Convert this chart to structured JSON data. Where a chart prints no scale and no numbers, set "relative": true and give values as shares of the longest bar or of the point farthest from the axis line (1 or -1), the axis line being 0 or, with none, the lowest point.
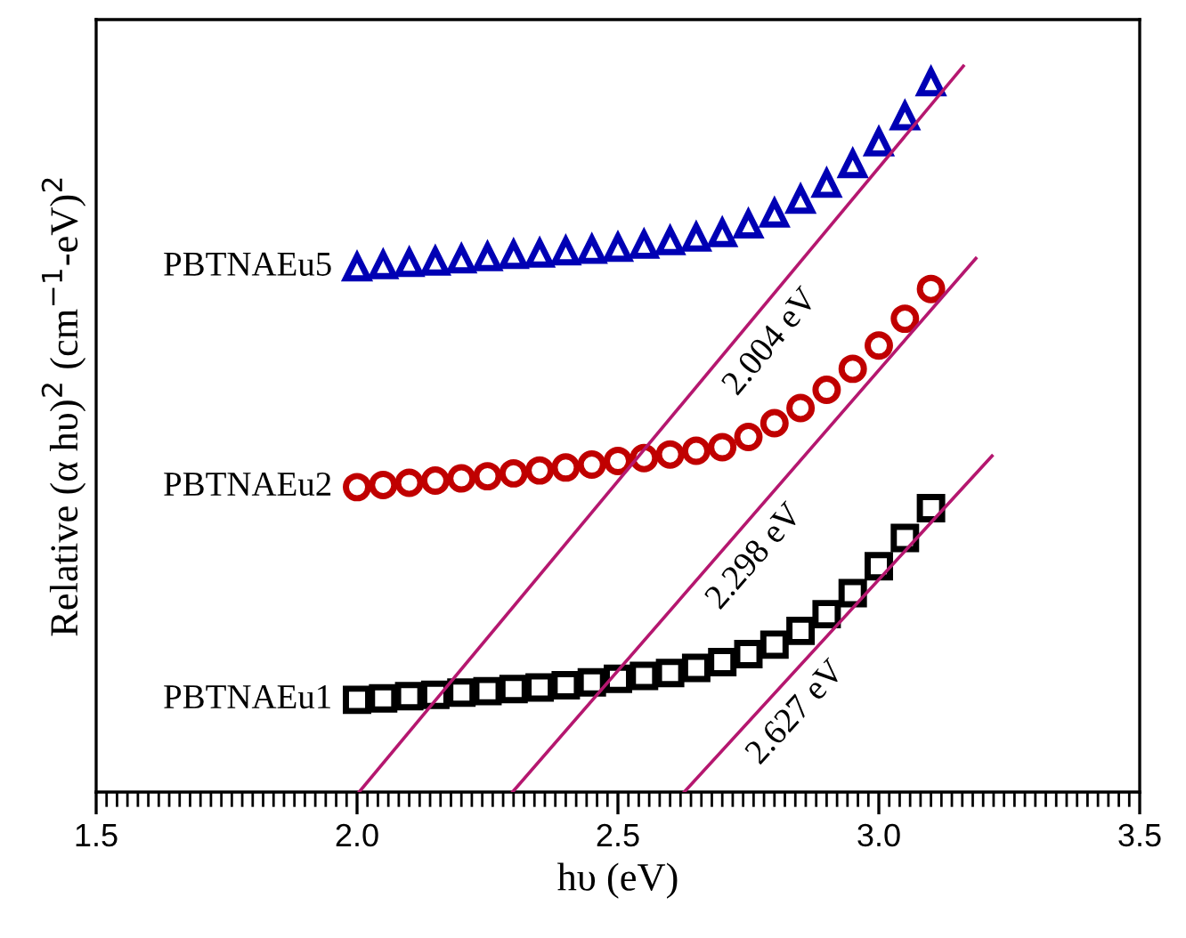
{
  "chart_data": {
    "type": "scatter",
    "relative": true,
    "xlabel": "hυ (eV)",
    "ylabel": "Relative (α hυ)$^{2}$ (cm$^{−1}$-eV)$^{2}$",
    "xlim": [
      1.5,
      3.5
    ],
    "xticks": [
      {
        "value": 1.5,
        "label": "1.5"
      },
      {
        "value": 2.0,
        "label": "2.0"
      },
      {
        "value": 2.5,
        "label": "2.5"
      },
      {
        "value": 3.0,
        "label": "3.0"
      },
      {
        "value": 3.5,
        "label": "3.5"
      }
    ],
    "grid": false,
    "series": [
      {
        "name": "PBTNAEu1",
        "color": "#000000",
        "marker": "square",
        "x": [
          2.0,
          2.05,
          2.1,
          2.15,
          2.2,
          2.25,
          2.3,
          2.35,
          2.4,
          2.45,
          2.5,
          2.55,
          2.6,
          2.65,
          2.7,
          2.75,
          2.8,
          2.85,
          2.9,
          2.95,
          3.0,
          3.05,
          3.1
        ],
        "values": [
          0.127,
          0.129,
          0.132,
          0.134,
          0.137,
          0.139,
          0.142,
          0.144,
          0.147,
          0.151,
          0.156,
          0.16,
          0.164,
          0.171,
          0.179,
          0.19,
          0.203,
          0.222,
          0.245,
          0.274,
          0.311,
          0.35,
          0.391
        ]
      },
      {
        "name": "PBTNAEu2",
        "color": "#c00000",
        "marker": "circle",
        "x": [
          2.0,
          2.05,
          2.1,
          2.15,
          2.2,
          2.25,
          2.3,
          2.35,
          2.4,
          2.45,
          2.5,
          2.55,
          2.6,
          2.65,
          2.7,
          2.75,
          2.8,
          2.85,
          2.9,
          2.95,
          3.0,
          3.05,
          3.1
        ],
        "values": [
          0.42,
          0.423,
          0.426,
          0.429,
          0.432,
          0.435,
          0.439,
          0.443,
          0.447,
          0.451,
          0.456,
          0.46,
          0.465,
          0.47,
          0.475,
          0.489,
          0.508,
          0.529,
          0.554,
          0.583,
          0.615,
          0.652,
          0.693
        ]
      },
      {
        "name": "PBTNAEu5",
        "color": "#0000b4",
        "marker": "triangle",
        "x": [
          2.0,
          2.05,
          2.1,
          2.15,
          2.2,
          2.25,
          2.3,
          2.35,
          2.4,
          2.45,
          2.5,
          2.55,
          2.6,
          2.65,
          2.7,
          2.75,
          2.8,
          2.85,
          2.9,
          2.95,
          3.0,
          3.05,
          3.1
        ],
        "values": [
          0.723,
          0.726,
          0.729,
          0.731,
          0.734,
          0.737,
          0.74,
          0.742,
          0.745,
          0.747,
          0.75,
          0.754,
          0.759,
          0.764,
          0.77,
          0.782,
          0.797,
          0.816,
          0.838,
          0.865,
          0.895,
          0.931,
          0.978
        ]
      },
      {
        "type": "line",
        "color": "#b5176f",
        "x": [
          2.004,
          3.162
        ],
        "values": [
          0,
          1.0
        ]
      },
      {
        "type": "line",
        "color": "#b5176f",
        "x": [
          2.298,
          3.186
        ],
        "values": [
          0,
          0.735
        ]
      },
      {
        "type": "line",
        "color": "#b5176f",
        "x": [
          2.627,
          3.217
        ],
        "values": [
          0,
          0.463
        ]
      }
    ],
    "annotations": [
      {
        "text": "2.004 eV",
        "x": 2.75,
        "y": 0.645
      },
      {
        "text": "2.298 eV",
        "x": 2.72,
        "y": 0.35
      },
      {
        "text": "2.627 eV",
        "x": 2.8,
        "y": 0.136
      }
    ]
  }
}
